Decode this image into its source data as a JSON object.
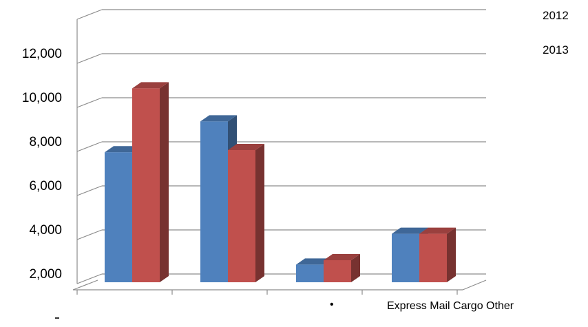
{
  "chart_data": {
    "type": "bar",
    "categories": [
      "Express",
      "Mail",
      "Cargo",
      "Other"
    ],
    "category_caption": "Express Mail Cargo Other",
    "bullet": "•",
    "series": [
      {
        "name": "2012",
        "color": "#4f81bd",
        "values": [
          8400,
          9800,
          3300,
          4700
        ]
      },
      {
        "name": "2013",
        "color": "#c0504d",
        "values": [
          11300,
          8500,
          3500,
          4700
        ]
      }
    ],
    "yticks": [
      "2,000",
      "4,000",
      "6,000",
      "8,000",
      "10,000",
      "12,000"
    ],
    "ylim": [
      2000,
      12000
    ],
    "grid": true,
    "style": "3d-clustered-column",
    "legend_position": "top-right",
    "gridline_color": "#8c8c8c"
  }
}
